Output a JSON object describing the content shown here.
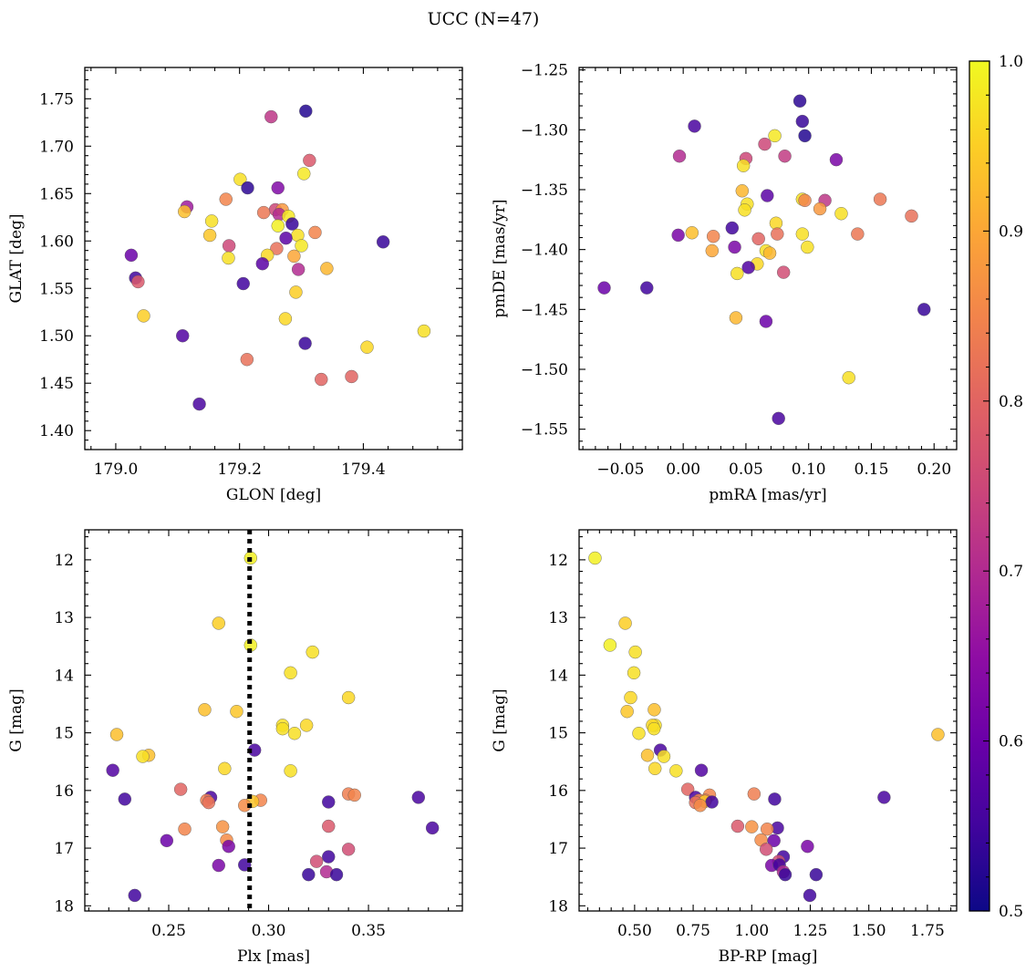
{
  "figure": {
    "suptitle": "UCC (N=47)"
  },
  "colorbar": {
    "min": 0.5,
    "max": 1.0,
    "ticks": [
      "0.5",
      "0.6",
      "0.7",
      "0.8",
      "0.9",
      "1.0"
    ],
    "colormap": "plasma"
  },
  "chart_data": [
    {
      "id": "lb",
      "type": "scatter",
      "title": "",
      "xlabel": "GLON [deg]",
      "ylabel": "GLAT [deg]",
      "xlim": [
        178.95,
        179.56
      ],
      "ylim": [
        1.38,
        1.783
      ],
      "y_inverted": false,
      "xticks": [
        "179.0",
        "179.2",
        "179.4"
      ],
      "yticks": [
        "1.40",
        "1.45",
        "1.50",
        "1.55",
        "1.60",
        "1.65",
        "1.70",
        "1.75"
      ],
      "points": [
        {
          "x": 179.307,
          "y": 1.737,
          "c": 0.52
        },
        {
          "x": 179.251,
          "y": 1.731,
          "c": 0.72
        },
        {
          "x": 179.313,
          "y": 1.685,
          "c": 0.78
        },
        {
          "x": 179.304,
          "y": 1.671,
          "c": 0.98
        },
        {
          "x": 179.201,
          "y": 1.665,
          "c": 0.97
        },
        {
          "x": 179.213,
          "y": 1.656,
          "c": 0.53
        },
        {
          "x": 179.262,
          "y": 1.656,
          "c": 0.63
        },
        {
          "x": 179.178,
          "y": 1.644,
          "c": 0.85
        },
        {
          "x": 179.115,
          "y": 1.636,
          "c": 0.67
        },
        {
          "x": 179.111,
          "y": 1.631,
          "c": 0.93
        },
        {
          "x": 179.258,
          "y": 1.633,
          "c": 0.75
        },
        {
          "x": 179.269,
          "y": 1.633,
          "c": 0.88
        },
        {
          "x": 179.239,
          "y": 1.63,
          "c": 0.83
        },
        {
          "x": 179.264,
          "y": 1.628,
          "c": 0.7
        },
        {
          "x": 179.279,
          "y": 1.626,
          "c": 0.98
        },
        {
          "x": 179.155,
          "y": 1.621,
          "c": 0.97
        },
        {
          "x": 179.285,
          "y": 1.618,
          "c": 0.54
        },
        {
          "x": 179.262,
          "y": 1.616,
          "c": 0.99
        },
        {
          "x": 179.322,
          "y": 1.609,
          "c": 0.85
        },
        {
          "x": 179.152,
          "y": 1.606,
          "c": 0.94
        },
        {
          "x": 179.294,
          "y": 1.606,
          "c": 0.97
        },
        {
          "x": 179.275,
          "y": 1.603,
          "c": 0.58
        },
        {
          "x": 179.432,
          "y": 1.599,
          "c": 0.54
        },
        {
          "x": 179.183,
          "y": 1.595,
          "c": 0.75
        },
        {
          "x": 179.3,
          "y": 1.595,
          "c": 0.98
        },
        {
          "x": 179.26,
          "y": 1.592,
          "c": 0.82
        },
        {
          "x": 179.025,
          "y": 1.585,
          "c": 0.6
        },
        {
          "x": 179.245,
          "y": 1.585,
          "c": 0.96
        },
        {
          "x": 179.288,
          "y": 1.584,
          "c": 0.9
        },
        {
          "x": 179.182,
          "y": 1.582,
          "c": 0.97
        },
        {
          "x": 179.237,
          "y": 1.576,
          "c": 0.58
        },
        {
          "x": 179.341,
          "y": 1.571,
          "c": 0.92
        },
        {
          "x": 179.295,
          "y": 1.57,
          "c": 0.7
        },
        {
          "x": 179.032,
          "y": 1.561,
          "c": 0.55
        },
        {
          "x": 179.036,
          "y": 1.557,
          "c": 0.78
        },
        {
          "x": 179.206,
          "y": 1.555,
          "c": 0.55
        },
        {
          "x": 179.291,
          "y": 1.546,
          "c": 0.95
        },
        {
          "x": 179.045,
          "y": 1.521,
          "c": 0.95
        },
        {
          "x": 179.274,
          "y": 1.518,
          "c": 0.96
        },
        {
          "x": 179.108,
          "y": 1.5,
          "c": 0.57
        },
        {
          "x": 179.498,
          "y": 1.505,
          "c": 0.97
        },
        {
          "x": 179.306,
          "y": 1.492,
          "c": 0.54
        },
        {
          "x": 179.406,
          "y": 1.488,
          "c": 0.96
        },
        {
          "x": 179.212,
          "y": 1.475,
          "c": 0.82
        },
        {
          "x": 179.381,
          "y": 1.457,
          "c": 0.8
        },
        {
          "x": 179.332,
          "y": 1.454,
          "c": 0.8
        },
        {
          "x": 179.135,
          "y": 1.428,
          "c": 0.56
        }
      ]
    },
    {
      "id": "pm",
      "type": "scatter",
      "title": "",
      "xlabel": "pmRA [mas/yr]",
      "ylabel": "pmDE [mas/yr]",
      "xlim": [
        -0.083,
        0.218
      ],
      "ylim": [
        -1.567,
        -1.248
      ],
      "y_inverted": false,
      "xticks": [
        "−0.05",
        "0.00",
        "0.05",
        "0.10",
        "0.15",
        "0.20"
      ],
      "yticks": [
        "−1.55",
        "−1.50",
        "−1.45",
        "−1.40",
        "−1.35",
        "−1.30",
        "−1.25"
      ],
      "points": [
        {
          "x": 0.093,
          "y": -1.276,
          "c": 0.53
        },
        {
          "x": 0.095,
          "y": -1.293,
          "c": 0.54
        },
        {
          "x": 0.009,
          "y": -1.297,
          "c": 0.56
        },
        {
          "x": 0.073,
          "y": -1.305,
          "c": 0.98
        },
        {
          "x": 0.097,
          "y": -1.305,
          "c": 0.52
        },
        {
          "x": 0.065,
          "y": -1.312,
          "c": 0.75
        },
        {
          "x": 0.05,
          "y": -1.324,
          "c": 0.75
        },
        {
          "x": 0.122,
          "y": -1.325,
          "c": 0.62
        },
        {
          "x": -0.003,
          "y": -1.322,
          "c": 0.7
        },
        {
          "x": 0.081,
          "y": -1.322,
          "c": 0.73
        },
        {
          "x": 0.048,
          "y": -1.33,
          "c": 0.97
        },
        {
          "x": 0.047,
          "y": -1.351,
          "c": 0.92
        },
        {
          "x": 0.067,
          "y": -1.355,
          "c": 0.58
        },
        {
          "x": 0.095,
          "y": -1.358,
          "c": 0.97
        },
        {
          "x": 0.097,
          "y": -1.359,
          "c": 0.85
        },
        {
          "x": 0.113,
          "y": -1.359,
          "c": 0.72
        },
        {
          "x": 0.157,
          "y": -1.358,
          "c": 0.83
        },
        {
          "x": 0.051,
          "y": -1.362,
          "c": 0.97
        },
        {
          "x": 0.049,
          "y": -1.367,
          "c": 0.97
        },
        {
          "x": 0.109,
          "y": -1.366,
          "c": 0.88
        },
        {
          "x": 0.126,
          "y": -1.37,
          "c": 0.97
        },
        {
          "x": 0.182,
          "y": -1.372,
          "c": 0.82
        },
        {
          "x": 0.074,
          "y": -1.378,
          "c": 0.96
        },
        {
          "x": 0.039,
          "y": -1.382,
          "c": 0.55
        },
        {
          "x": -0.004,
          "y": -1.388,
          "c": 0.62
        },
        {
          "x": 0.007,
          "y": -1.386,
          "c": 0.93
        },
        {
          "x": 0.024,
          "y": -1.389,
          "c": 0.85
        },
        {
          "x": 0.075,
          "y": -1.387,
          "c": 0.82
        },
        {
          "x": 0.095,
          "y": -1.387,
          "c": 0.97
        },
        {
          "x": 0.139,
          "y": -1.387,
          "c": 0.83
        },
        {
          "x": 0.06,
          "y": -1.391,
          "c": 0.8
        },
        {
          "x": 0.041,
          "y": -1.398,
          "c": 0.62
        },
        {
          "x": 0.099,
          "y": -1.398,
          "c": 0.97
        },
        {
          "x": 0.023,
          "y": -1.401,
          "c": 0.9
        },
        {
          "x": 0.066,
          "y": -1.401,
          "c": 0.97
        },
        {
          "x": 0.069,
          "y": -1.403,
          "c": 0.92
        },
        {
          "x": 0.059,
          "y": -1.412,
          "c": 0.96
        },
        {
          "x": 0.052,
          "y": -1.415,
          "c": 0.57
        },
        {
          "x": 0.08,
          "y": -1.419,
          "c": 0.76
        },
        {
          "x": 0.043,
          "y": -1.42,
          "c": 0.97
        },
        {
          "x": -0.063,
          "y": -1.432,
          "c": 0.6
        },
        {
          "x": -0.029,
          "y": -1.432,
          "c": 0.55
        },
        {
          "x": 0.192,
          "y": -1.45,
          "c": 0.54
        },
        {
          "x": 0.042,
          "y": -1.457,
          "c": 0.92
        },
        {
          "x": 0.066,
          "y": -1.46,
          "c": 0.6
        },
        {
          "x": 0.132,
          "y": -1.507,
          "c": 0.97
        },
        {
          "x": 0.076,
          "y": -1.541,
          "c": 0.56
        }
      ]
    },
    {
      "id": "plx",
      "type": "scatter",
      "title": "",
      "xlabel": "Plx [mas]",
      "ylabel": "G [mag]",
      "xlim": [
        0.208,
        0.397
      ],
      "ylim": [
        11.48,
        18.09
      ],
      "y_inverted": true,
      "xticks": [
        "0.25",
        "0.30",
        "0.35"
      ],
      "yticks": [
        "12",
        "13",
        "14",
        "15",
        "16",
        "17",
        "18"
      ],
      "vline": {
        "x": 0.2905,
        "style": "dotted"
      },
      "points": [
        {
          "x": 0.291,
          "y": 11.97,
          "c": 0.99
        },
        {
          "x": 0.275,
          "y": 13.1,
          "c": 0.95
        },
        {
          "x": 0.291,
          "y": 13.48,
          "c": 0.99
        },
        {
          "x": 0.322,
          "y": 13.6,
          "c": 0.97
        },
        {
          "x": 0.311,
          "y": 13.96,
          "c": 0.97
        },
        {
          "x": 0.34,
          "y": 14.39,
          "c": 0.96
        },
        {
          "x": 0.268,
          "y": 14.6,
          "c": 0.93
        },
        {
          "x": 0.284,
          "y": 14.63,
          "c": 0.94
        },
        {
          "x": 0.307,
          "y": 14.87,
          "c": 0.97
        },
        {
          "x": 0.319,
          "y": 14.87,
          "c": 0.96
        },
        {
          "x": 0.307,
          "y": 14.93,
          "c": 0.97
        },
        {
          "x": 0.313,
          "y": 15.01,
          "c": 0.97
        },
        {
          "x": 0.224,
          "y": 15.03,
          "c": 0.93
        },
        {
          "x": 0.293,
          "y": 15.3,
          "c": 0.56
        },
        {
          "x": 0.24,
          "y": 15.39,
          "c": 0.93
        },
        {
          "x": 0.237,
          "y": 15.41,
          "c": 0.97
        },
        {
          "x": 0.278,
          "y": 15.62,
          "c": 0.96
        },
        {
          "x": 0.222,
          "y": 15.65,
          "c": 0.57
        },
        {
          "x": 0.311,
          "y": 15.66,
          "c": 0.97
        },
        {
          "x": 0.256,
          "y": 15.98,
          "c": 0.8
        },
        {
          "x": 0.34,
          "y": 16.06,
          "c": 0.84
        },
        {
          "x": 0.343,
          "y": 16.08,
          "c": 0.85
        },
        {
          "x": 0.271,
          "y": 16.12,
          "c": 0.56
        },
        {
          "x": 0.375,
          "y": 16.12,
          "c": 0.56
        },
        {
          "x": 0.228,
          "y": 16.15,
          "c": 0.55
        },
        {
          "x": 0.269,
          "y": 16.17,
          "c": 0.84
        },
        {
          "x": 0.296,
          "y": 16.17,
          "c": 0.85
        },
        {
          "x": 0.292,
          "y": 16.19,
          "c": 0.94
        },
        {
          "x": 0.33,
          "y": 16.2,
          "c": 0.55
        },
        {
          "x": 0.27,
          "y": 16.21,
          "c": 0.82
        },
        {
          "x": 0.288,
          "y": 16.26,
          "c": 0.86
        },
        {
          "x": 0.33,
          "y": 16.62,
          "c": 0.78
        },
        {
          "x": 0.277,
          "y": 16.63,
          "c": 0.87
        },
        {
          "x": 0.382,
          "y": 16.65,
          "c": 0.56
        },
        {
          "x": 0.258,
          "y": 16.67,
          "c": 0.85
        },
        {
          "x": 0.249,
          "y": 16.87,
          "c": 0.6
        },
        {
          "x": 0.279,
          "y": 16.86,
          "c": 0.86
        },
        {
          "x": 0.28,
          "y": 16.97,
          "c": 0.62
        },
        {
          "x": 0.34,
          "y": 17.02,
          "c": 0.76
        },
        {
          "x": 0.33,
          "y": 17.15,
          "c": 0.55
        },
        {
          "x": 0.324,
          "y": 17.23,
          "c": 0.76
        },
        {
          "x": 0.275,
          "y": 17.3,
          "c": 0.62
        },
        {
          "x": 0.288,
          "y": 17.29,
          "c": 0.55
        },
        {
          "x": 0.329,
          "y": 17.41,
          "c": 0.7
        },
        {
          "x": 0.32,
          "y": 17.46,
          "c": 0.54
        },
        {
          "x": 0.334,
          "y": 17.46,
          "c": 0.54
        },
        {
          "x": 0.233,
          "y": 17.82,
          "c": 0.55
        }
      ]
    },
    {
      "id": "cmd",
      "type": "scatter",
      "title": "",
      "xlabel": "BP-RP [mag]",
      "ylabel": "G [mag]",
      "xlim": [
        0.263,
        1.875
      ],
      "ylim": [
        11.48,
        18.09
      ],
      "y_inverted": true,
      "xticks": [
        "0.50",
        "0.75",
        "1.00",
        "1.25",
        "1.50",
        "1.75"
      ],
      "yticks": [
        "12",
        "13",
        "14",
        "15",
        "16",
        "17",
        "18"
      ],
      "points": [
        {
          "x": 0.331,
          "y": 11.97,
          "c": 0.99
        },
        {
          "x": 0.46,
          "y": 13.1,
          "c": 0.95
        },
        {
          "x": 0.395,
          "y": 13.48,
          "c": 0.99
        },
        {
          "x": 0.503,
          "y": 13.6,
          "c": 0.97
        },
        {
          "x": 0.497,
          "y": 13.96,
          "c": 0.97
        },
        {
          "x": 0.483,
          "y": 14.39,
          "c": 0.96
        },
        {
          "x": 0.584,
          "y": 14.6,
          "c": 0.93
        },
        {
          "x": 0.468,
          "y": 14.63,
          "c": 0.94
        },
        {
          "x": 0.588,
          "y": 14.87,
          "c": 0.97
        },
        {
          "x": 0.576,
          "y": 14.87,
          "c": 0.96
        },
        {
          "x": 0.583,
          "y": 14.93,
          "c": 0.97
        },
        {
          "x": 0.518,
          "y": 15.01,
          "c": 0.97
        },
        {
          "x": 1.795,
          "y": 15.03,
          "c": 0.93
        },
        {
          "x": 0.61,
          "y": 15.3,
          "c": 0.56
        },
        {
          "x": 0.555,
          "y": 15.39,
          "c": 0.93
        },
        {
          "x": 0.625,
          "y": 15.41,
          "c": 0.97
        },
        {
          "x": 0.587,
          "y": 15.62,
          "c": 0.96
        },
        {
          "x": 0.785,
          "y": 15.65,
          "c": 0.57
        },
        {
          "x": 0.677,
          "y": 15.66,
          "c": 0.97
        },
        {
          "x": 0.727,
          "y": 15.98,
          "c": 0.8
        },
        {
          "x": 1.01,
          "y": 16.06,
          "c": 0.84
        },
        {
          "x": 0.82,
          "y": 16.08,
          "c": 0.85
        },
        {
          "x": 0.76,
          "y": 16.12,
          "c": 0.56
        },
        {
          "x": 1.565,
          "y": 16.12,
          "c": 0.56
        },
        {
          "x": 1.098,
          "y": 16.15,
          "c": 0.55
        },
        {
          "x": 0.802,
          "y": 16.17,
          "c": 0.84
        },
        {
          "x": 0.775,
          "y": 16.17,
          "c": 0.85
        },
        {
          "x": 0.8,
          "y": 16.19,
          "c": 0.94
        },
        {
          "x": 0.83,
          "y": 16.2,
          "c": 0.55
        },
        {
          "x": 0.76,
          "y": 16.21,
          "c": 0.82
        },
        {
          "x": 0.78,
          "y": 16.26,
          "c": 0.86
        },
        {
          "x": 0.94,
          "y": 16.62,
          "c": 0.78
        },
        {
          "x": 1.0,
          "y": 16.63,
          "c": 0.87
        },
        {
          "x": 1.11,
          "y": 16.65,
          "c": 0.56
        },
        {
          "x": 1.066,
          "y": 16.67,
          "c": 0.85
        },
        {
          "x": 1.095,
          "y": 16.87,
          "c": 0.6
        },
        {
          "x": 1.04,
          "y": 16.86,
          "c": 0.86
        },
        {
          "x": 1.238,
          "y": 16.97,
          "c": 0.62
        },
        {
          "x": 1.062,
          "y": 17.02,
          "c": 0.76
        },
        {
          "x": 1.135,
          "y": 17.15,
          "c": 0.55
        },
        {
          "x": 1.115,
          "y": 17.23,
          "c": 0.76
        },
        {
          "x": 1.085,
          "y": 17.3,
          "c": 0.62
        },
        {
          "x": 1.118,
          "y": 17.29,
          "c": 0.55
        },
        {
          "x": 1.135,
          "y": 17.41,
          "c": 0.7
        },
        {
          "x": 1.143,
          "y": 17.46,
          "c": 0.54
        },
        {
          "x": 1.275,
          "y": 17.46,
          "c": 0.54
        },
        {
          "x": 1.248,
          "y": 17.82,
          "c": 0.55
        }
      ]
    }
  ]
}
